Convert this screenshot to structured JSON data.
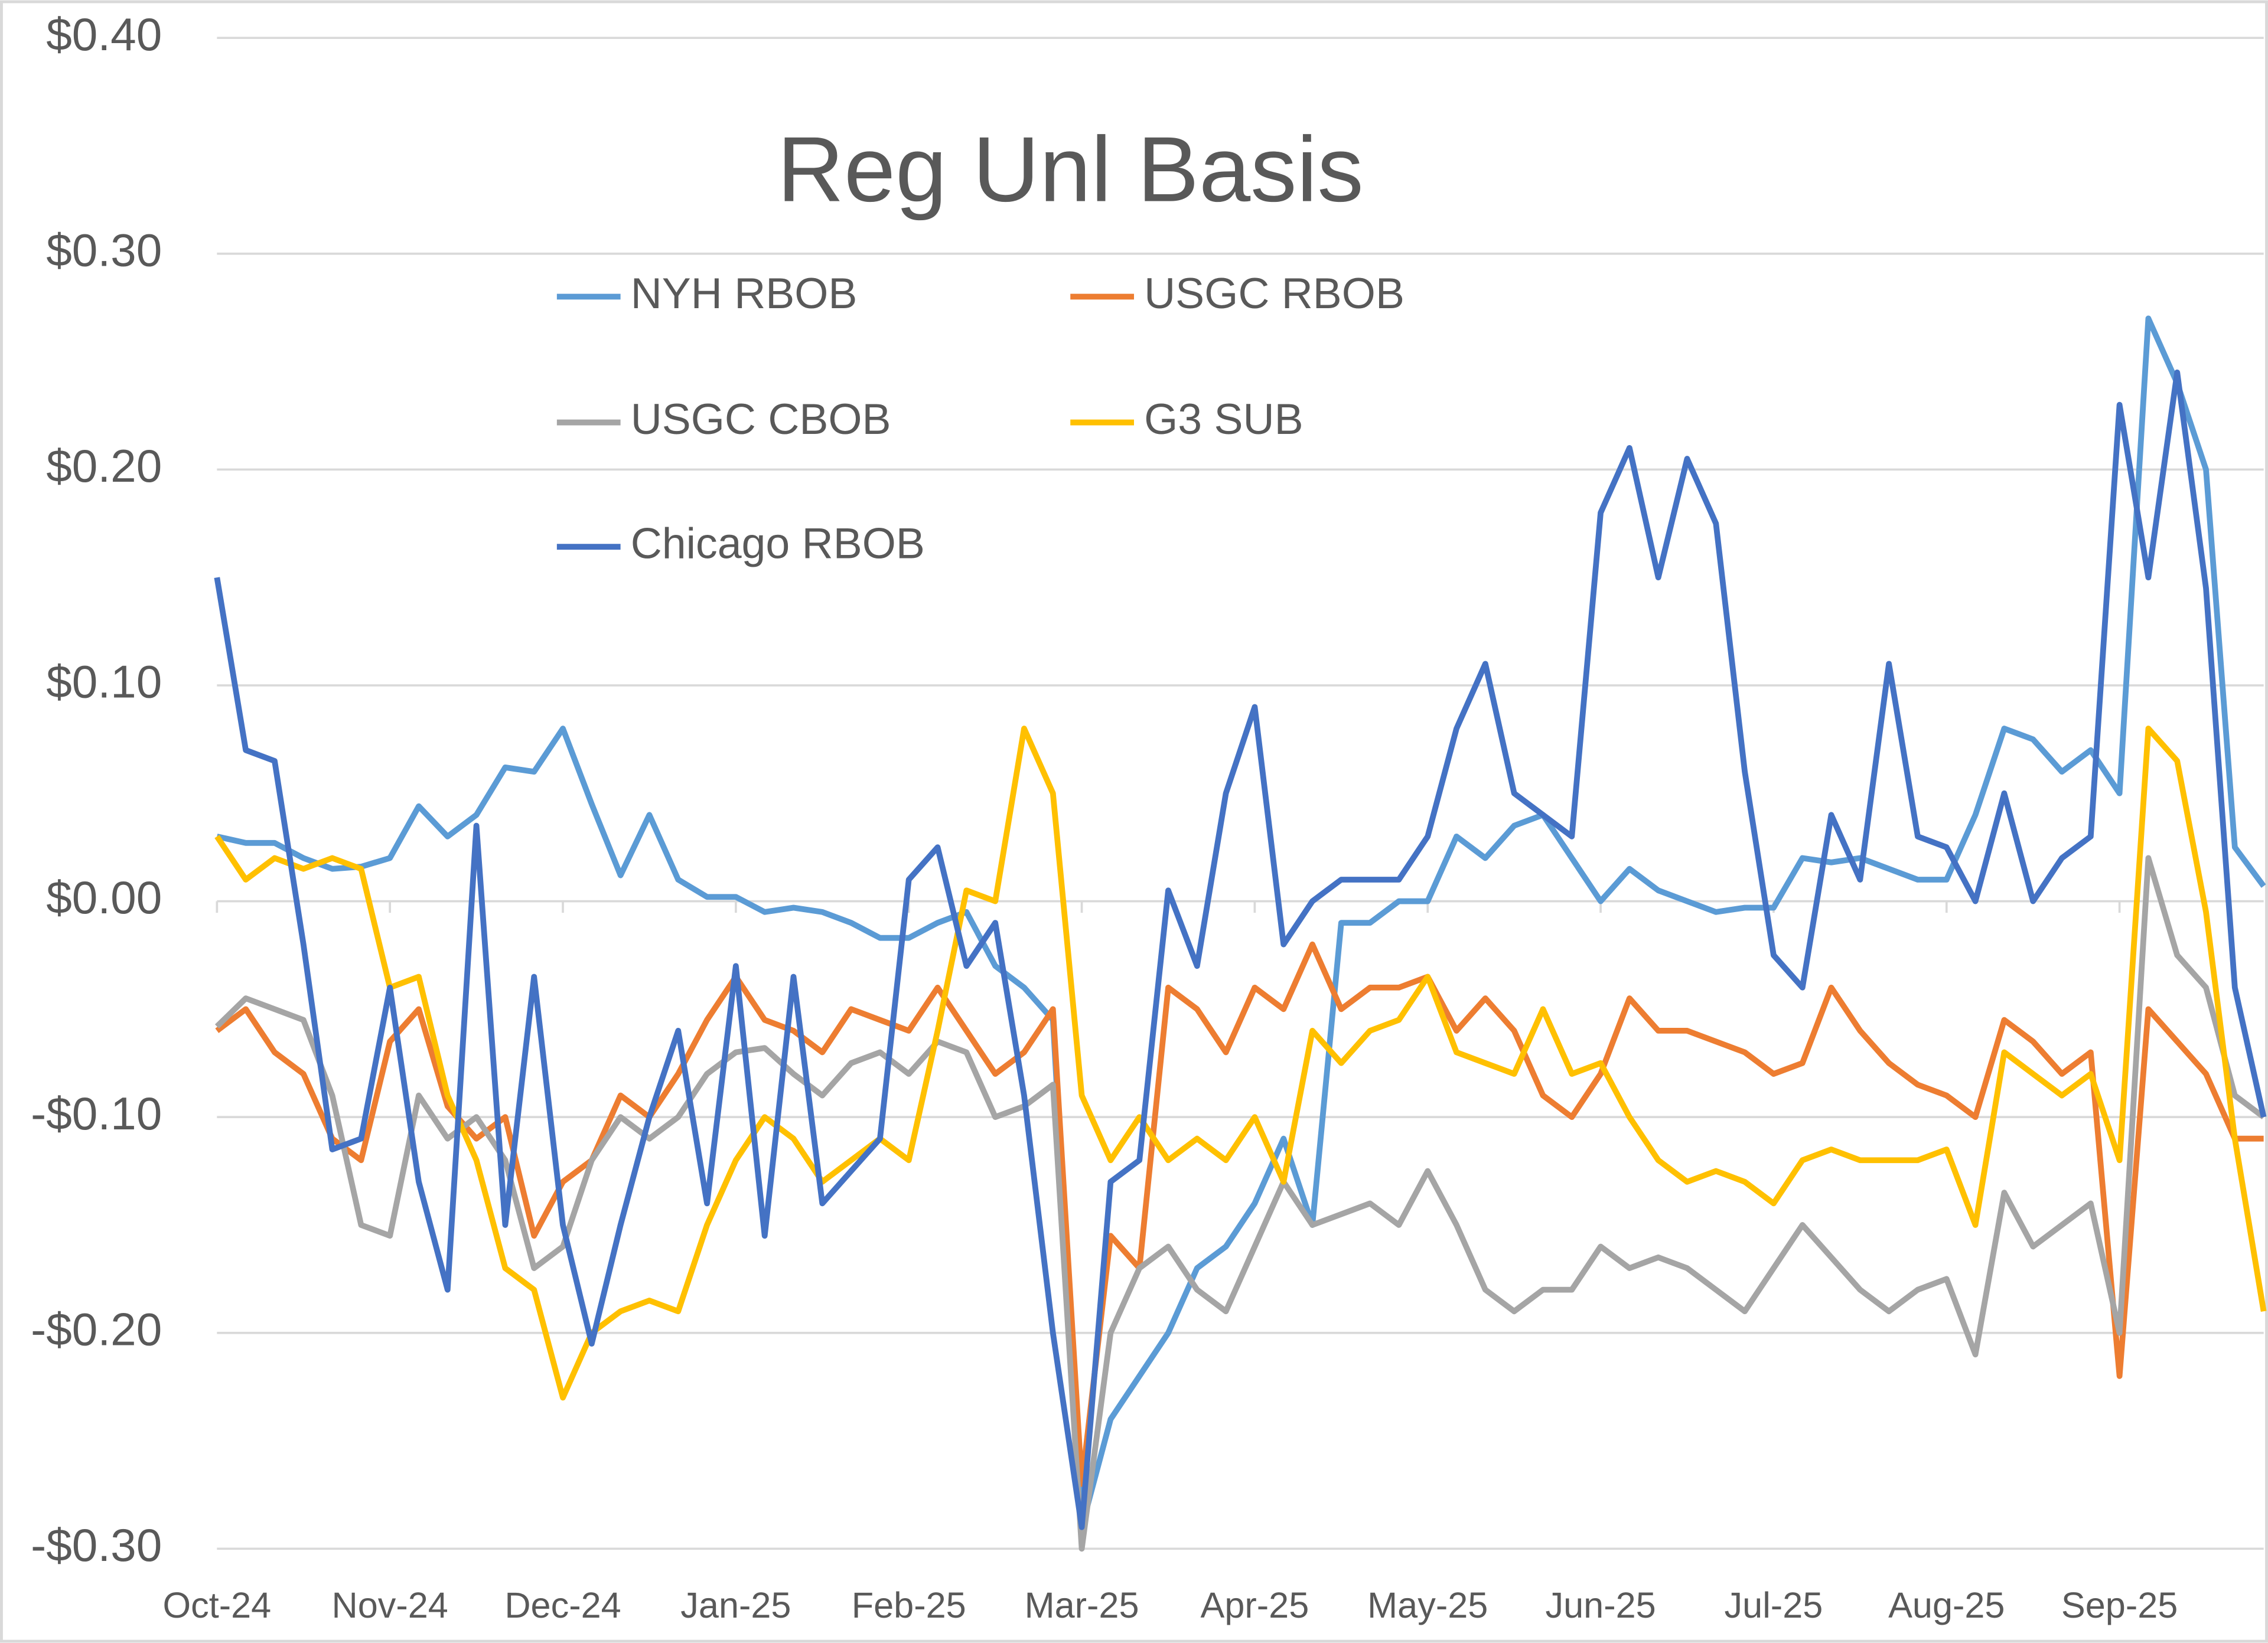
{
  "chart_data": {
    "type": "line",
    "title": "Reg Unl Basis",
    "categories": [
      "Oct-24",
      null,
      null,
      null,
      null,
      null,
      "Nov-24",
      null,
      null,
      null,
      null,
      null,
      "Dec-24",
      null,
      null,
      null,
      null,
      null,
      "Jan-25",
      null,
      null,
      null,
      null,
      null,
      "Feb-25",
      null,
      null,
      null,
      null,
      null,
      "Mar-25",
      null,
      null,
      null,
      null,
      null,
      "Apr-25",
      null,
      null,
      null,
      null,
      null,
      "May-25",
      null,
      null,
      null,
      null,
      null,
      "Jun-25",
      null,
      null,
      null,
      null,
      null,
      "Jul-25",
      null,
      null,
      null,
      null,
      null,
      "Aug-25",
      null,
      null,
      null,
      null,
      null,
      "Sep-25",
      null,
      null,
      null,
      null,
      null
    ],
    "series": [
      {
        "name": "NYH RBOB",
        "color": "#5b9bd5",
        "values": [
          0.03,
          0.027,
          0.027,
          0.02,
          0.015,
          0.016,
          0.02,
          0.044,
          0.03,
          0.04,
          0.062,
          0.06,
          0.08,
          0.045,
          0.012,
          0.04,
          0.01,
          0.002,
          0.002,
          -0.005,
          -0.003,
          -0.005,
          -0.01,
          -0.017,
          -0.017,
          -0.01,
          -0.005,
          -0.03,
          -0.04,
          -0.055,
          -0.29,
          -0.24,
          -0.22,
          -0.2,
          -0.17,
          -0.16,
          -0.14,
          -0.11,
          -0.15,
          -0.01,
          -0.01,
          0.0,
          0.0,
          0.03,
          0.02,
          0.035,
          0.04,
          0.02,
          0.0,
          0.015,
          0.005,
          0.0,
          -0.005,
          -0.003,
          -0.003,
          0.02,
          0.018,
          0.02,
          0.015,
          0.01,
          0.01,
          0.04,
          0.08,
          0.075,
          0.06,
          0.07,
          0.05,
          0.27,
          0.24,
          0.2,
          0.025,
          0.007
        ]
      },
      {
        "name": "USGC RBOB",
        "color": "#ed7d31",
        "values": [
          -0.06,
          -0.05,
          -0.07,
          -0.08,
          -0.11,
          -0.12,
          -0.065,
          -0.05,
          -0.095,
          -0.11,
          -0.1,
          -0.155,
          -0.13,
          -0.12,
          -0.09,
          -0.1,
          -0.08,
          -0.055,
          -0.035,
          -0.055,
          -0.06,
          -0.07,
          -0.05,
          -0.055,
          -0.06,
          -0.04,
          -0.06,
          -0.08,
          -0.07,
          -0.05,
          -0.27,
          -0.155,
          -0.17,
          -0.04,
          -0.05,
          -0.07,
          -0.04,
          -0.05,
          -0.02,
          -0.05,
          -0.04,
          -0.04,
          -0.035,
          -0.06,
          -0.045,
          -0.06,
          -0.09,
          -0.1,
          -0.08,
          -0.045,
          -0.06,
          -0.06,
          -0.065,
          -0.07,
          -0.08,
          -0.075,
          -0.04,
          -0.06,
          -0.075,
          -0.085,
          -0.09,
          -0.1,
          -0.055,
          -0.065,
          -0.08,
          -0.07,
          -0.22,
          -0.05,
          -0.065,
          -0.08,
          -0.11,
          -0.11
        ]
      },
      {
        "name": "USGC CBOB",
        "color": "#a5a5a5",
        "values": [
          -0.058,
          -0.045,
          -0.05,
          -0.055,
          -0.09,
          -0.15,
          -0.155,
          -0.09,
          -0.11,
          -0.1,
          -0.12,
          -0.17,
          -0.16,
          -0.12,
          -0.1,
          -0.11,
          -0.1,
          -0.08,
          -0.07,
          -0.068,
          -0.08,
          -0.09,
          -0.075,
          -0.07,
          -0.08,
          -0.065,
          -0.07,
          -0.1,
          -0.095,
          -0.085,
          -0.3,
          -0.2,
          -0.17,
          -0.16,
          -0.18,
          -0.19,
          -0.16,
          -0.13,
          -0.15,
          -0.145,
          -0.14,
          -0.15,
          -0.125,
          -0.15,
          -0.18,
          -0.19,
          -0.18,
          -0.18,
          -0.16,
          -0.17,
          -0.165,
          -0.17,
          -0.18,
          -0.19,
          -0.17,
          -0.15,
          -0.165,
          -0.18,
          -0.19,
          -0.18,
          -0.175,
          -0.21,
          -0.135,
          -0.16,
          -0.15,
          -0.14,
          -0.2,
          0.02,
          -0.025,
          -0.04,
          -0.09,
          -0.1
        ]
      },
      {
        "name": "G3 SUB",
        "color": "#ffc000",
        "values": [
          0.03,
          0.01,
          0.02,
          0.015,
          0.02,
          0.015,
          -0.04,
          -0.035,
          -0.09,
          -0.12,
          -0.17,
          -0.18,
          -0.23,
          -0.2,
          -0.19,
          -0.185,
          -0.19,
          -0.15,
          -0.12,
          -0.1,
          -0.11,
          -0.13,
          -0.12,
          -0.11,
          -0.12,
          -0.06,
          0.005,
          0.0,
          0.08,
          0.05,
          -0.09,
          -0.12,
          -0.1,
          -0.12,
          -0.11,
          -0.12,
          -0.1,
          -0.13,
          -0.06,
          -0.075,
          -0.06,
          -0.055,
          -0.035,
          -0.07,
          -0.075,
          -0.08,
          -0.05,
          -0.08,
          -0.075,
          -0.1,
          -0.12,
          -0.13,
          -0.125,
          -0.13,
          -0.14,
          -0.12,
          -0.115,
          -0.12,
          -0.12,
          -0.12,
          -0.115,
          -0.15,
          -0.07,
          -0.08,
          -0.09,
          -0.08,
          -0.12,
          0.08,
          0.065,
          -0.005,
          -0.11,
          -0.19
        ]
      },
      {
        "name": "Chicago RBOB",
        "color": "#4472c4",
        "values": [
          0.15,
          0.07,
          0.065,
          -0.02,
          -0.115,
          -0.11,
          -0.04,
          -0.13,
          -0.18,
          0.035,
          -0.15,
          -0.035,
          -0.15,
          -0.205,
          -0.15,
          -0.1,
          -0.06,
          -0.14,
          -0.03,
          -0.155,
          -0.035,
          -0.14,
          -0.125,
          -0.11,
          0.01,
          0.025,
          -0.03,
          -0.01,
          -0.09,
          -0.2,
          -0.29,
          -0.13,
          -0.12,
          0.005,
          -0.03,
          0.05,
          0.09,
          -0.02,
          0.0,
          0.01,
          0.01,
          0.01,
          0.03,
          0.08,
          0.11,
          0.05,
          0.04,
          0.03,
          0.18,
          0.21,
          0.15,
          0.205,
          0.175,
          0.06,
          -0.025,
          -0.04,
          0.04,
          0.01,
          0.11,
          0.03,
          0.025,
          0.0,
          0.05,
          0.0,
          0.02,
          0.03,
          0.23,
          0.15,
          0.245,
          0.145,
          -0.04,
          -0.1
        ]
      }
    ],
    "ylim": [
      -0.3,
      0.4
    ],
    "yticks": [
      {
        "value": -0.3,
        "label": "-$0.30"
      },
      {
        "value": -0.2,
        "label": "-$0.20"
      },
      {
        "value": -0.1,
        "label": "-$0.10"
      },
      {
        "value": 0,
        "label": "$0.00"
      },
      {
        "value": 0.1,
        "label": "$0.10"
      },
      {
        "value": 0.2,
        "label": "$0.20"
      },
      {
        "value": 0.3,
        "label": "$0.30"
      },
      {
        "value": 0.4,
        "label": "$0.40"
      }
    ],
    "grid": true,
    "legend": "top"
  }
}
